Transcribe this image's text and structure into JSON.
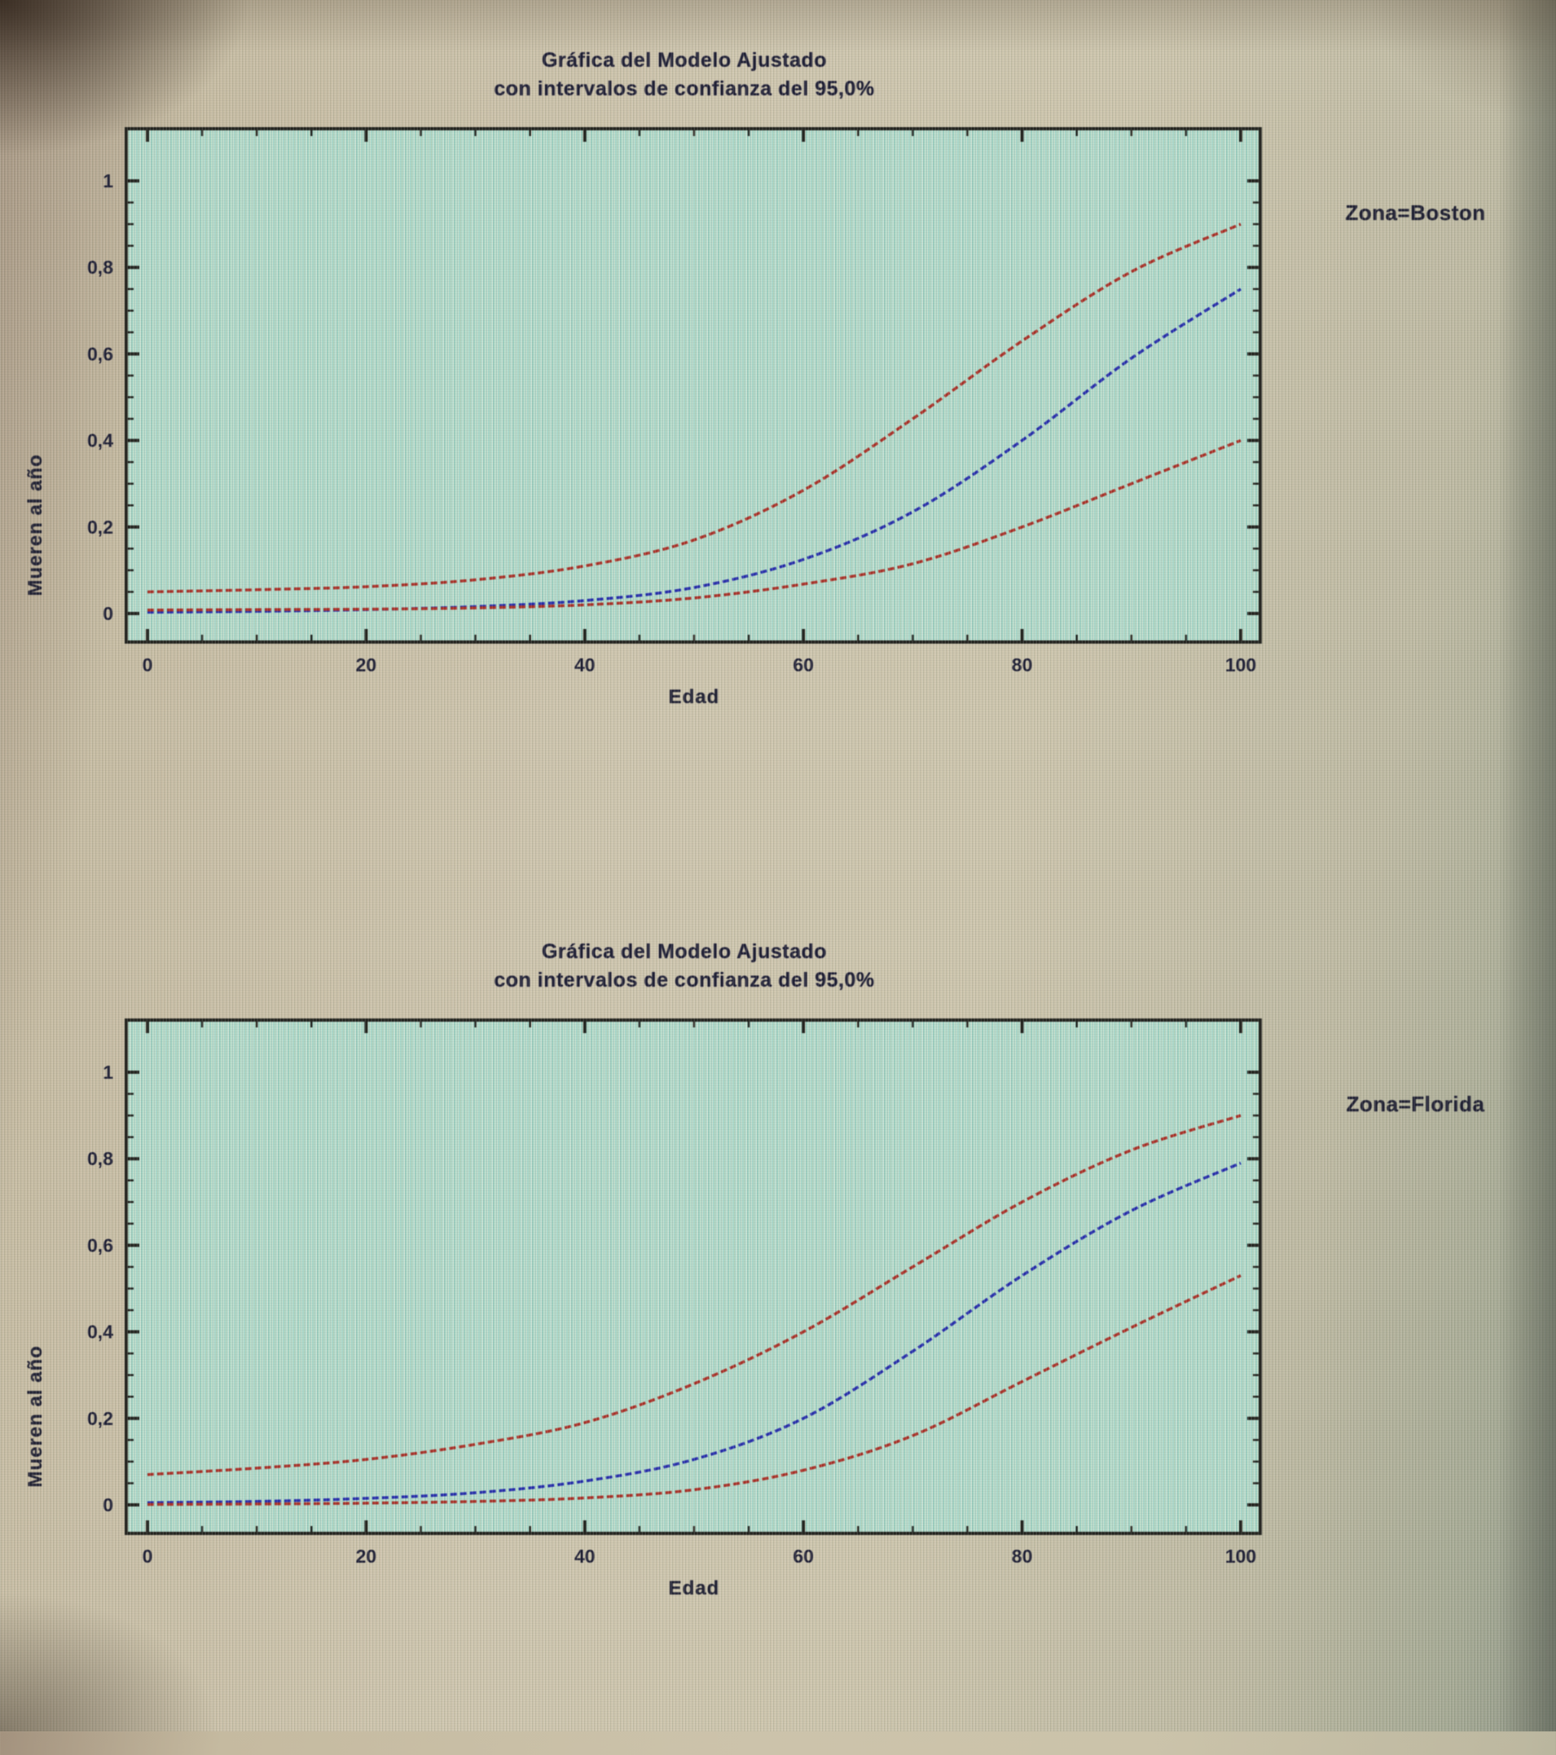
{
  "colors": {
    "fit_line": "#2128b4",
    "confidence_band": "#b02a20",
    "axis": "#1d1d18",
    "text": "#181830",
    "plot_background": "#a5d8cc",
    "page_background": "#c9c1a8"
  },
  "chart_data": [
    {
      "type": "line",
      "title": "Gráfica del Modelo Ajustado",
      "subtitle": "con intervalos de confianza del 95,0%",
      "zone_label": "Zona=Boston",
      "xlabel": "Edad",
      "ylabel": "Mueren al año",
      "xlim": [
        0,
        100
      ],
      "ylim": [
        0,
        1
      ],
      "x_ticks": {
        "values": [
          0,
          20,
          40,
          60,
          80,
          100
        ],
        "labels": [
          "0",
          "20",
          "40",
          "60",
          "80",
          "100"
        ],
        "minor_step": 5
      },
      "y_ticks": {
        "values": [
          0,
          0.2,
          0.4,
          0.6,
          0.8,
          1
        ],
        "labels": [
          "0",
          "0,2",
          "0,4",
          "0,6",
          "0,8",
          "1"
        ],
        "minor_step": 0.05
      },
      "x": [
        0,
        10,
        20,
        30,
        40,
        50,
        60,
        70,
        80,
        90,
        100
      ],
      "series": [
        {
          "name": "upper_confidence_limit",
          "color_key": "confidence_band",
          "values": [
            0.05,
            0.055,
            0.062,
            0.078,
            0.11,
            0.17,
            0.285,
            0.45,
            0.63,
            0.79,
            0.9
          ]
        },
        {
          "name": "fitted_model",
          "color_key": "fit_line",
          "values": [
            0.003,
            0.005,
            0.009,
            0.016,
            0.03,
            0.06,
            0.125,
            0.235,
            0.4,
            0.59,
            0.75
          ]
        },
        {
          "name": "lower_confidence_limit",
          "color_key": "confidence_band",
          "values": [
            0.008,
            0.009,
            0.01,
            0.013,
            0.02,
            0.036,
            0.068,
            0.115,
            0.2,
            0.3,
            0.4
          ]
        }
      ]
    },
    {
      "type": "line",
      "title": "Gráfica del Modelo Ajustado",
      "subtitle": "con intervalos de confianza del 95,0%",
      "zone_label": "Zona=Florida",
      "xlabel": "Edad",
      "ylabel": "Mueren al año",
      "xlim": [
        0,
        100
      ],
      "ylim": [
        0,
        1
      ],
      "x_ticks": {
        "values": [
          0,
          20,
          40,
          60,
          80,
          100
        ],
        "labels": [
          "0",
          "20",
          "40",
          "60",
          "80",
          "100"
        ],
        "minor_step": 5
      },
      "y_ticks": {
        "values": [
          0,
          0.2,
          0.4,
          0.6,
          0.8,
          1
        ],
        "labels": [
          "0",
          "0,2",
          "0,4",
          "0,6",
          "0,8",
          "1"
        ],
        "minor_step": 0.05
      },
      "x": [
        0,
        10,
        20,
        30,
        40,
        50,
        60,
        70,
        80,
        90,
        100
      ],
      "series": [
        {
          "name": "upper_confidence_limit",
          "color_key": "confidence_band",
          "values": [
            0.07,
            0.085,
            0.105,
            0.14,
            0.19,
            0.28,
            0.4,
            0.55,
            0.7,
            0.82,
            0.9
          ]
        },
        {
          "name": "fitted_model",
          "color_key": "fit_line",
          "values": [
            0.005,
            0.008,
            0.015,
            0.028,
            0.055,
            0.105,
            0.2,
            0.355,
            0.53,
            0.68,
            0.79
          ]
        },
        {
          "name": "lower_confidence_limit",
          "color_key": "confidence_band",
          "values": [
            0.001,
            0.002,
            0.004,
            0.008,
            0.016,
            0.035,
            0.08,
            0.16,
            0.285,
            0.41,
            0.53
          ]
        }
      ]
    }
  ]
}
